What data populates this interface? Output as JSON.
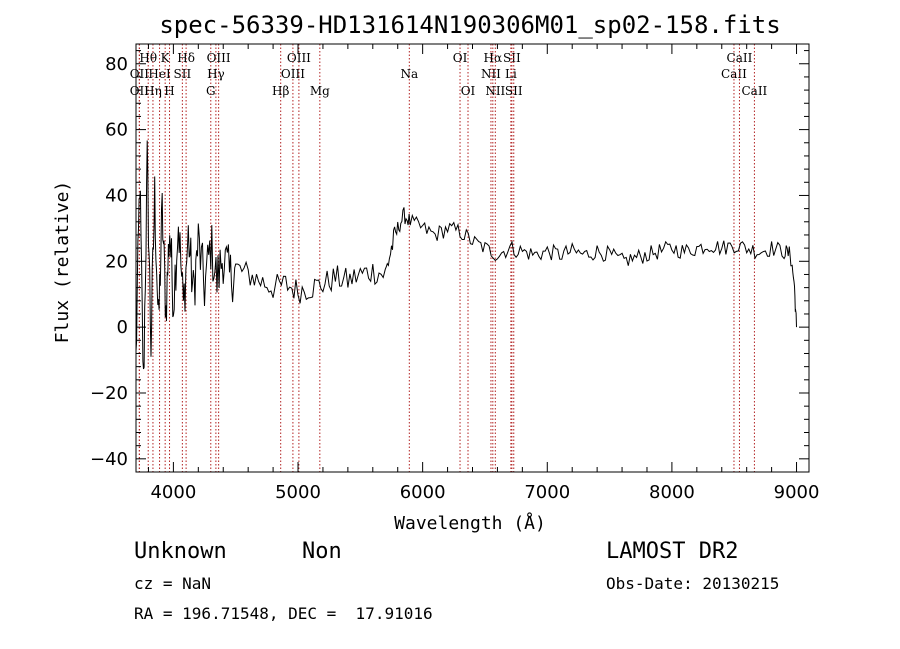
{
  "chart_data": {
    "type": "line",
    "title": "spec-56339-HD131614N190306M01_sp02-158.fits",
    "xlabel": "Wavelength (Å)",
    "ylabel": "Flux (relative)",
    "xlim": [
      3700,
      9100
    ],
    "ylim": [
      -44,
      86
    ],
    "xticks": [
      4000,
      5000,
      6000,
      7000,
      8000,
      9000
    ],
    "yticks": [
      -40,
      -20,
      0,
      20,
      40,
      60,
      80
    ],
    "grid": false,
    "line_color": "#000000",
    "marker_color": "#b22222",
    "spectrum": {
      "x": [
        3700,
        3730,
        3760,
        3790,
        3820,
        3850,
        3880,
        3910,
        3940,
        3970,
        4000,
        4040,
        4080,
        4120,
        4160,
        4200,
        4250,
        4300,
        4350,
        4400,
        4450,
        4500,
        4600,
        4700,
        4800,
        4900,
        5000,
        5100,
        5200,
        5300,
        5400,
        5500,
        5600,
        5700,
        5750,
        5800,
        5850,
        5900,
        6000,
        6100,
        6200,
        6300,
        6400,
        6500,
        6600,
        6700,
        6800,
        6900,
        7000,
        7100,
        7200,
        7300,
        7400,
        7500,
        7600,
        7700,
        7800,
        7900,
        8000,
        8100,
        8200,
        8300,
        8400,
        8500,
        8600,
        8700,
        8800,
        8900,
        8950,
        8980,
        9000
      ],
      "y": [
        -10,
        45,
        -18,
        50,
        -5,
        40,
        0,
        35,
        5,
        30,
        8,
        32,
        6,
        28,
        10,
        26,
        12,
        25,
        14,
        22,
        15,
        18,
        16,
        14,
        12,
        13,
        11,
        12,
        13,
        15,
        14,
        16,
        17,
        16,
        24,
        30,
        34,
        32,
        30,
        28,
        30,
        29,
        26,
        24,
        22,
        24,
        23,
        22,
        23,
        22,
        23,
        22,
        23,
        22,
        20,
        21,
        22,
        23,
        24,
        23,
        24,
        25,
        24,
        25,
        24,
        23,
        24,
        23,
        22,
        14,
        0
      ]
    },
    "line_markers": [
      {
        "label": "OII",
        "x": 3727,
        "row": 2
      },
      {
        "label": "OII",
        "x": 3727,
        "row": 3
      },
      {
        "label": "Hθ",
        "x": 3798,
        "row": 1
      },
      {
        "label": "Hη",
        "x": 3836,
        "row": 3
      },
      {
        "label": "HeI",
        "x": 3889,
        "row": 2
      },
      {
        "label": "K",
        "x": 3934,
        "row": 1
      },
      {
        "label": "H",
        "x": 3969,
        "row": 3
      },
      {
        "label": "SII",
        "x": 4072,
        "row": 2
      },
      {
        "label": "Hδ",
        "x": 4102,
        "row": 1
      },
      {
        "label": "G",
        "x": 4300,
        "row": 3
      },
      {
        "label": "OIII",
        "x": 4363,
        "row": 1
      },
      {
        "label": "Hγ",
        "x": 4341,
        "row": 2
      },
      {
        "label": "Hβ",
        "x": 4861,
        "row": 3
      },
      {
        "label": "OIII",
        "x": 4959,
        "row": 2
      },
      {
        "label": "OIII",
        "x": 5007,
        "row": 1
      },
      {
        "label": "Mg",
        "x": 5175,
        "row": 3
      },
      {
        "label": "Na",
        "x": 5893,
        "row": 2
      },
      {
        "label": "OI",
        "x": 6300,
        "row": 1
      },
      {
        "label": "OI",
        "x": 6364,
        "row": 3
      },
      {
        "label": "NII",
        "x": 6548,
        "row": 2
      },
      {
        "label": "Hα",
        "x": 6563,
        "row": 1
      },
      {
        "label": "NII",
        "x": 6583,
        "row": 3
      },
      {
        "label": "SII",
        "x": 6716,
        "row": 1
      },
      {
        "label": "Li",
        "x": 6708,
        "row": 2
      },
      {
        "label": "SII",
        "x": 6731,
        "row": 3
      },
      {
        "label": "CaII",
        "x": 8498,
        "row": 2
      },
      {
        "label": "CaII",
        "x": 8542,
        "row": 1
      },
      {
        "label": "CaII",
        "x": 8662,
        "row": 3
      }
    ]
  },
  "info": {
    "object_class": "Unknown",
    "object_subclass": "Non",
    "survey": "LAMOST DR2",
    "redshift": "cz = NaN",
    "obs_date": "Obs-Date: 20130215",
    "coordinates": "RA = 196.71548, DEC =  17.91016"
  }
}
